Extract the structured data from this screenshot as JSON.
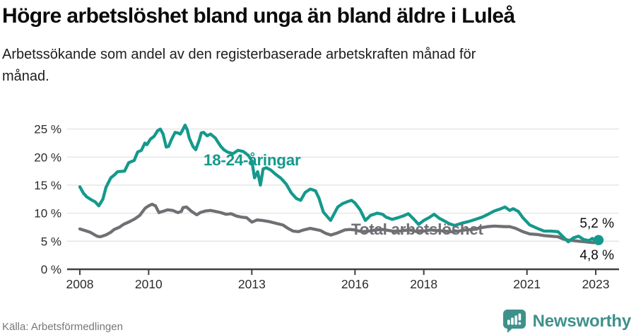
{
  "header": {
    "title": "Högre arbetslöshet bland unga än bland äldre i Luleå",
    "subtitle": "Arbetssökande som andel av den registerbaserade arbetskraften månad för månad."
  },
  "footer": {
    "source": "Källa: Arbetsförmedlingen",
    "brand": "Newsworthy"
  },
  "colors": {
    "young_line": "#14998C",
    "total_line": "#6F6F74",
    "axis": "#3F3F44",
    "grid": "#E3E3E5",
    "tick_text": "#2B2B2B",
    "brand_teal": "#3E918B"
  },
  "chart_data": {
    "type": "line",
    "title": "Högre arbetslöshet bland unga än bland äldre i Luleå",
    "xlabel": "",
    "ylabel": "",
    "unit": "%",
    "grid": "horizontal",
    "xlim": [
      2007.63,
      2023.67
    ],
    "ylim": [
      0,
      27
    ],
    "x_ticks": [
      "2008",
      "2010",
      "2013",
      "2016",
      "2018",
      "2021",
      "2023"
    ],
    "x_tick_years": [
      2008,
      2010,
      2013,
      2016,
      2018,
      2021,
      2023
    ],
    "y_ticks": [
      {
        "value": 0,
        "label": "0 %"
      },
      {
        "value": 5,
        "label": "5 %"
      },
      {
        "value": 10,
        "label": "10 %"
      },
      {
        "value": 15,
        "label": "15 %"
      },
      {
        "value": 20,
        "label": "20 %"
      },
      {
        "value": 25,
        "label": "25 %"
      }
    ],
    "series": [
      {
        "name": "18-24-åringar",
        "color": "#14998C",
        "end_label": "5,2 %",
        "end_value": 5.2,
        "end_dot": true,
        "points": [
          [
            2008.0,
            14.7
          ],
          [
            2008.1,
            13.6
          ],
          [
            2008.2,
            12.9
          ],
          [
            2008.33,
            12.4
          ],
          [
            2008.45,
            12.0
          ],
          [
            2008.55,
            11.3
          ],
          [
            2008.67,
            12.5
          ],
          [
            2008.76,
            14.6
          ],
          [
            2008.9,
            16.3
          ],
          [
            2009.0,
            16.8
          ],
          [
            2009.1,
            17.4
          ],
          [
            2009.3,
            17.5
          ],
          [
            2009.42,
            19.0
          ],
          [
            2009.58,
            19.4
          ],
          [
            2009.68,
            20.9
          ],
          [
            2009.79,
            21.2
          ],
          [
            2009.89,
            22.5
          ],
          [
            2009.95,
            22.2
          ],
          [
            2010.05,
            23.2
          ],
          [
            2010.16,
            23.7
          ],
          [
            2010.26,
            24.7
          ],
          [
            2010.34,
            25.0
          ],
          [
            2010.42,
            24.1
          ],
          [
            2010.51,
            21.8
          ],
          [
            2010.58,
            21.9
          ],
          [
            2010.67,
            23.2
          ],
          [
            2010.77,
            24.4
          ],
          [
            2010.85,
            24.3
          ],
          [
            2010.92,
            24.1
          ],
          [
            2010.98,
            24.7
          ],
          [
            2011.06,
            25.7
          ],
          [
            2011.12,
            24.9
          ],
          [
            2011.18,
            23.4
          ],
          [
            2011.29,
            21.9
          ],
          [
            2011.37,
            21.3
          ],
          [
            2011.47,
            23.0
          ],
          [
            2011.53,
            24.3
          ],
          [
            2011.6,
            24.4
          ],
          [
            2011.7,
            23.8
          ],
          [
            2011.8,
            24.1
          ],
          [
            2011.88,
            23.7
          ],
          [
            2011.94,
            23.4
          ],
          [
            2012.0,
            22.8
          ],
          [
            2012.1,
            21.9
          ],
          [
            2012.19,
            21.3
          ],
          [
            2012.29,
            20.9
          ],
          [
            2012.45,
            20.6
          ],
          [
            2012.6,
            21.2
          ],
          [
            2012.75,
            21.0
          ],
          [
            2012.9,
            20.3
          ],
          [
            2013.0,
            19.3
          ],
          [
            2013.08,
            16.3
          ],
          [
            2013.17,
            17.4
          ],
          [
            2013.25,
            15.0
          ],
          [
            2013.33,
            17.9
          ],
          [
            2013.42,
            18.1
          ],
          [
            2013.55,
            17.7
          ],
          [
            2013.7,
            16.9
          ],
          [
            2013.85,
            16.2
          ],
          [
            2014.0,
            15.2
          ],
          [
            2014.15,
            13.6
          ],
          [
            2014.3,
            12.6
          ],
          [
            2014.42,
            12.3
          ],
          [
            2014.55,
            13.7
          ],
          [
            2014.7,
            14.3
          ],
          [
            2014.85,
            14.0
          ],
          [
            2014.95,
            12.7
          ],
          [
            2015.08,
            10.2
          ],
          [
            2015.29,
            8.7
          ],
          [
            2015.5,
            11.1
          ],
          [
            2015.64,
            11.7
          ],
          [
            2015.8,
            12.1
          ],
          [
            2015.9,
            12.3
          ],
          [
            2016.0,
            11.8
          ],
          [
            2016.15,
            10.6
          ],
          [
            2016.3,
            8.7
          ],
          [
            2016.45,
            9.6
          ],
          [
            2016.65,
            10.0
          ],
          [
            2016.8,
            9.8
          ],
          [
            2016.9,
            9.3
          ],
          [
            2017.08,
            8.9
          ],
          [
            2017.25,
            9.2
          ],
          [
            2017.4,
            9.5
          ],
          [
            2017.55,
            9.9
          ],
          [
            2017.7,
            9.0
          ],
          [
            2017.85,
            8.0
          ],
          [
            2018.0,
            8.7
          ],
          [
            2018.15,
            9.2
          ],
          [
            2018.3,
            9.8
          ],
          [
            2018.45,
            9.1
          ],
          [
            2018.6,
            8.6
          ],
          [
            2018.75,
            8.1
          ],
          [
            2018.9,
            7.8
          ],
          [
            2019.1,
            8.2
          ],
          [
            2019.3,
            8.5
          ],
          [
            2019.5,
            8.9
          ],
          [
            2019.7,
            9.3
          ],
          [
            2019.9,
            9.9
          ],
          [
            2020.05,
            10.4
          ],
          [
            2020.2,
            10.7
          ],
          [
            2020.36,
            11.1
          ],
          [
            2020.5,
            10.5
          ],
          [
            2020.6,
            10.8
          ],
          [
            2020.75,
            10.3
          ],
          [
            2020.88,
            9.2
          ],
          [
            2021.08,
            7.9
          ],
          [
            2021.3,
            7.3
          ],
          [
            2021.5,
            6.8
          ],
          [
            2021.7,
            6.8
          ],
          [
            2021.9,
            6.7
          ],
          [
            2022.05,
            5.8
          ],
          [
            2022.2,
            4.9
          ],
          [
            2022.35,
            5.6
          ],
          [
            2022.5,
            5.9
          ],
          [
            2022.65,
            5.3
          ],
          [
            2022.8,
            5.1
          ],
          [
            2022.9,
            5.5
          ],
          [
            2023.0,
            4.9
          ],
          [
            2023.08,
            5.2
          ]
        ]
      },
      {
        "name": "Total arbetslöshet",
        "color": "#6F6F74",
        "end_label": "4,8 %",
        "end_value": 4.8,
        "end_dot": false,
        "points": [
          [
            2008.0,
            7.2
          ],
          [
            2008.15,
            6.9
          ],
          [
            2008.3,
            6.6
          ],
          [
            2008.5,
            5.9
          ],
          [
            2008.6,
            5.8
          ],
          [
            2008.75,
            6.1
          ],
          [
            2008.9,
            6.6
          ],
          [
            2009.0,
            7.1
          ],
          [
            2009.15,
            7.5
          ],
          [
            2009.27,
            8.0
          ],
          [
            2009.45,
            8.5
          ],
          [
            2009.6,
            9.0
          ],
          [
            2009.74,
            9.6
          ],
          [
            2009.9,
            10.9
          ],
          [
            2010.0,
            11.3
          ],
          [
            2010.1,
            11.6
          ],
          [
            2010.2,
            11.3
          ],
          [
            2010.3,
            10.1
          ],
          [
            2010.45,
            10.4
          ],
          [
            2010.55,
            10.6
          ],
          [
            2010.7,
            10.5
          ],
          [
            2010.85,
            10.1
          ],
          [
            2010.95,
            10.3
          ],
          [
            2011.0,
            11.0
          ],
          [
            2011.1,
            11.1
          ],
          [
            2011.25,
            10.3
          ],
          [
            2011.4,
            9.7
          ],
          [
            2011.5,
            10.1
          ],
          [
            2011.65,
            10.4
          ],
          [
            2011.8,
            10.5
          ],
          [
            2011.95,
            10.3
          ],
          [
            2012.1,
            10.1
          ],
          [
            2012.25,
            9.8
          ],
          [
            2012.4,
            9.9
          ],
          [
            2012.55,
            9.5
          ],
          [
            2012.7,
            9.3
          ],
          [
            2012.85,
            9.2
          ],
          [
            2013.0,
            8.4
          ],
          [
            2013.15,
            8.8
          ],
          [
            2013.3,
            8.7
          ],
          [
            2013.5,
            8.5
          ],
          [
            2013.7,
            8.2
          ],
          [
            2013.9,
            7.9
          ],
          [
            2014.05,
            7.3
          ],
          [
            2014.2,
            6.8
          ],
          [
            2014.35,
            6.7
          ],
          [
            2014.5,
            7.0
          ],
          [
            2014.7,
            7.3
          ],
          [
            2014.85,
            7.1
          ],
          [
            2015.0,
            6.9
          ],
          [
            2015.15,
            6.4
          ],
          [
            2015.3,
            6.1
          ],
          [
            2015.5,
            6.5
          ],
          [
            2015.7,
            7.0
          ],
          [
            2015.85,
            7.1
          ],
          [
            2016.0,
            7.0
          ],
          [
            2016.2,
            6.7
          ],
          [
            2016.4,
            6.8
          ],
          [
            2016.6,
            7.0
          ],
          [
            2016.8,
            7.1
          ],
          [
            2017.0,
            6.9
          ],
          [
            2017.2,
            6.7
          ],
          [
            2017.4,
            6.9
          ],
          [
            2017.6,
            7.0
          ],
          [
            2017.8,
            6.7
          ],
          [
            2018.0,
            6.8
          ],
          [
            2018.2,
            7.0
          ],
          [
            2018.4,
            6.9
          ],
          [
            2018.6,
            6.8
          ],
          [
            2018.8,
            6.7
          ],
          [
            2019.0,
            6.8
          ],
          [
            2019.2,
            7.0
          ],
          [
            2019.44,
            7.1
          ],
          [
            2019.65,
            7.4
          ],
          [
            2019.85,
            7.6
          ],
          [
            2020.05,
            7.7
          ],
          [
            2020.36,
            7.6
          ],
          [
            2020.5,
            7.6
          ],
          [
            2020.67,
            7.3
          ],
          [
            2020.88,
            6.7
          ],
          [
            2021.08,
            6.3
          ],
          [
            2021.3,
            6.2
          ],
          [
            2021.5,
            6.0
          ],
          [
            2021.7,
            5.9
          ],
          [
            2021.9,
            5.8
          ],
          [
            2022.05,
            5.4
          ],
          [
            2022.2,
            5.2
          ],
          [
            2022.35,
            5.1
          ],
          [
            2022.5,
            5.0
          ],
          [
            2022.7,
            4.9
          ],
          [
            2022.9,
            4.75
          ],
          [
            2023.08,
            4.8
          ]
        ]
      }
    ]
  }
}
